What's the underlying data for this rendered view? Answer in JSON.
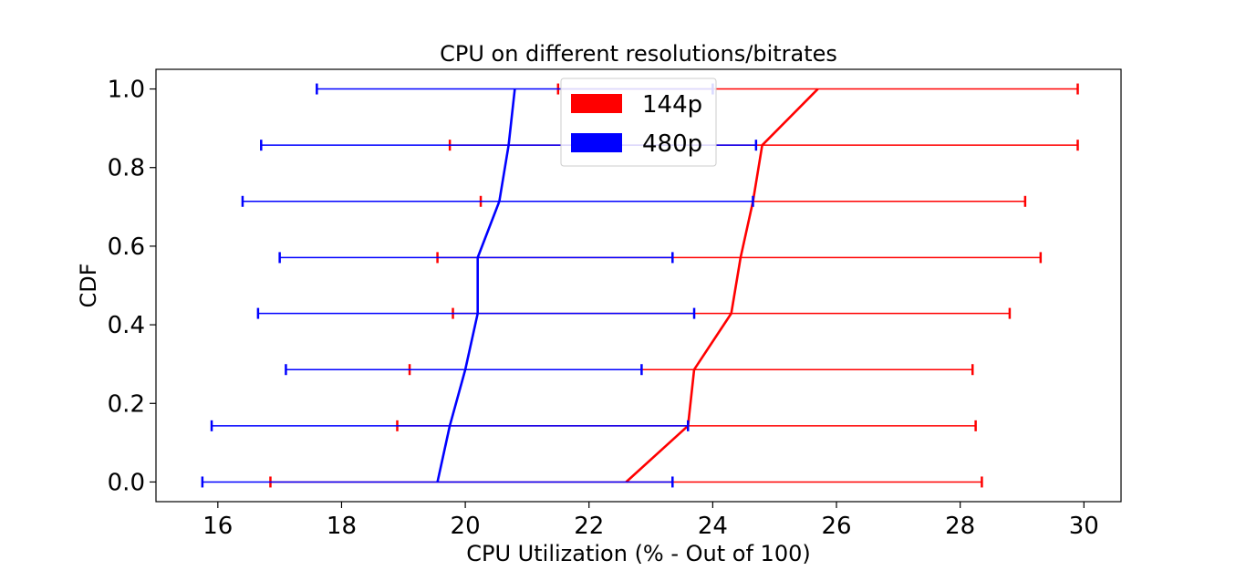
{
  "chart_data": {
    "type": "line",
    "title": "CPU on different resolutions/bitrates",
    "xlabel": "CPU Utilization (% - Out of 100)",
    "ylabel": "CDF",
    "xlim": [
      15.0,
      30.6
    ],
    "ylim": [
      -0.05,
      1.05
    ],
    "xticks": [
      16,
      18,
      20,
      22,
      24,
      26,
      28,
      30
    ],
    "yticks": [
      0.0,
      0.2,
      0.4,
      0.6,
      0.8,
      1.0
    ],
    "xtick_labels": [
      "16",
      "18",
      "20",
      "22",
      "24",
      "26",
      "28",
      "30"
    ],
    "ytick_labels": [
      "0.0",
      "0.2",
      "0.4",
      "0.6",
      "0.8",
      "1.0"
    ],
    "grid": false,
    "legend_position": "top-center",
    "series": [
      {
        "name": "144p",
        "color": "#ff0000",
        "y": [
          0.0,
          0.143,
          0.286,
          0.429,
          0.571,
          0.714,
          0.857,
          1.0
        ],
        "x": [
          22.6,
          23.6,
          23.7,
          24.3,
          24.45,
          24.65,
          24.8,
          25.7
        ],
        "xerr_low": [
          16.85,
          18.9,
          19.1,
          19.8,
          19.55,
          20.25,
          19.75,
          21.5
        ],
        "xerr_high": [
          28.35,
          28.25,
          28.2,
          28.8,
          29.3,
          29.05,
          29.9,
          29.9
        ]
      },
      {
        "name": "480p",
        "color": "#0000ff",
        "y": [
          0.0,
          0.143,
          0.286,
          0.429,
          0.571,
          0.714,
          0.857,
          1.0
        ],
        "x": [
          19.55,
          19.75,
          20.0,
          20.2,
          20.2,
          20.55,
          20.7,
          20.8
        ],
        "xerr_low": [
          15.75,
          15.9,
          17.1,
          16.65,
          17.0,
          16.4,
          16.7,
          17.6
        ],
        "xerr_high": [
          23.35,
          23.6,
          22.85,
          23.7,
          23.35,
          24.65,
          24.7,
          24.0
        ]
      }
    ]
  }
}
